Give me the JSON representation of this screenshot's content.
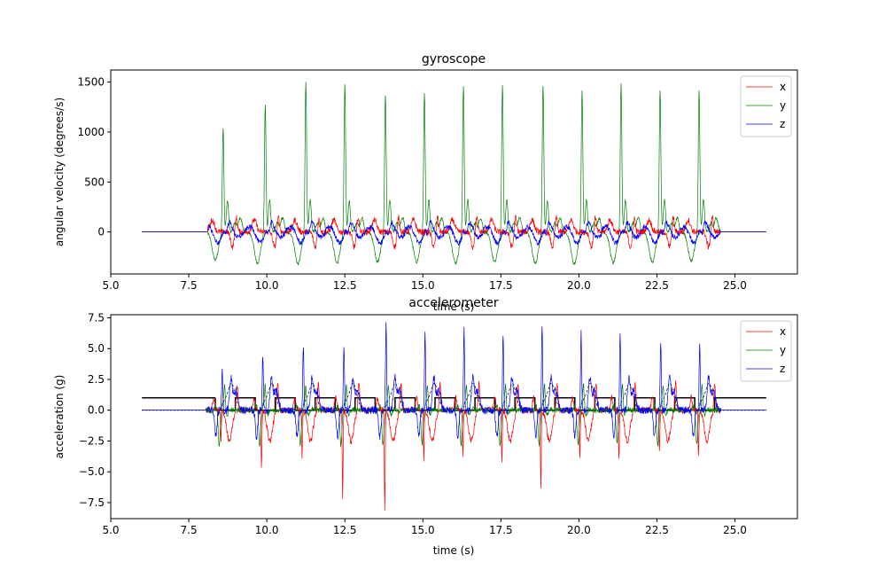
{
  "chart_data": [
    {
      "type": "line",
      "title": "gyroscope",
      "xlabel": "time (s)",
      "ylabel": "angular velocity (degrees/s)",
      "xlim": [
        5.0,
        27.0
      ],
      "ylim": [
        -420,
        1620
      ],
      "xticks": [
        "5.0",
        "7.5",
        "10.0",
        "12.5",
        "15.0",
        "17.5",
        "20.0",
        "22.5",
        "25.0"
      ],
      "xtick_values": [
        5.0,
        7.5,
        10.0,
        12.5,
        15.0,
        17.5,
        20.0,
        22.5,
        25.0
      ],
      "yticks": [
        "0",
        "500",
        "1000",
        "1500"
      ],
      "ytick_values": [
        0,
        500,
        1000,
        1500
      ],
      "legend_position": "top-right",
      "grid": false,
      "series": [
        {
          "name": "x",
          "color": "#ff0000"
        },
        {
          "name": "y",
          "color": "#008000"
        },
        {
          "name": "z",
          "color": "#0000ff"
        }
      ],
      "stride_times": [
        8.6,
        9.95,
        11.25,
        12.5,
        13.8,
        15.05,
        16.3,
        17.55,
        18.85,
        20.1,
        21.35,
        22.6,
        23.85
      ],
      "y_peaks": [
        1060,
        1290,
        1520,
        1475,
        1380,
        1400,
        1485,
        1480,
        1460,
        1430,
        1495,
        1420,
        1440
      ],
      "y_troughs": [
        -280,
        -310,
        -320,
        -310,
        -300,
        -300,
        -310,
        -300,
        -310,
        -320,
        -310,
        -300,
        -290
      ]
    },
    {
      "type": "line",
      "title": "accelerometer",
      "xlabel": "time (s)",
      "ylabel": "acceleration (g)",
      "xlim": [
        5.0,
        27.0
      ],
      "ylim": [
        -8.8,
        7.75
      ],
      "xticks": [
        "5.0",
        "7.5",
        "10.0",
        "12.5",
        "15.0",
        "17.5",
        "20.0",
        "22.5",
        "25.0"
      ],
      "xtick_values": [
        5.0,
        7.5,
        10.0,
        12.5,
        15.0,
        17.5,
        20.0,
        22.5,
        25.0
      ],
      "yticks": [
        "−7.5",
        "−5.0",
        "−2.5",
        "0.0",
        "2.5",
        "5.0",
        "7.5"
      ],
      "ytick_values": [
        -7.5,
        -5.0,
        -2.5,
        0.0,
        2.5,
        5.0,
        7.5
      ],
      "legend_position": "top-right",
      "grid": false,
      "series": [
        {
          "name": "x",
          "color": "#ff0000"
        },
        {
          "name": "y",
          "color": "#008000"
        },
        {
          "name": "z",
          "color": "#0000ff"
        }
      ],
      "stride_times": [
        8.55,
        9.85,
        11.15,
        12.45,
        13.8,
        15.05,
        16.3,
        17.55,
        18.8,
        20.05,
        21.3,
        22.6,
        23.85
      ],
      "x_troughs": [
        -2.4,
        -4.8,
        -3.9,
        -7.0,
        -8.0,
        -4.0,
        -3.8,
        -4.1,
        -6.1,
        -4.1,
        -4.0,
        -3.5,
        -3.6
      ],
      "z_peaks": [
        3.3,
        4.6,
        5.3,
        5.2,
        7.0,
        6.2,
        6.6,
        6.3,
        6.9,
        6.4,
        6.2,
        5.6,
        5.3
      ],
      "step_signal": {
        "high": 1.0,
        "low": 0.0,
        "start": 6.0,
        "end": 26.0
      },
      "dashed_series": {
        "color": "#000000",
        "peak": 2.2
      }
    }
  ]
}
